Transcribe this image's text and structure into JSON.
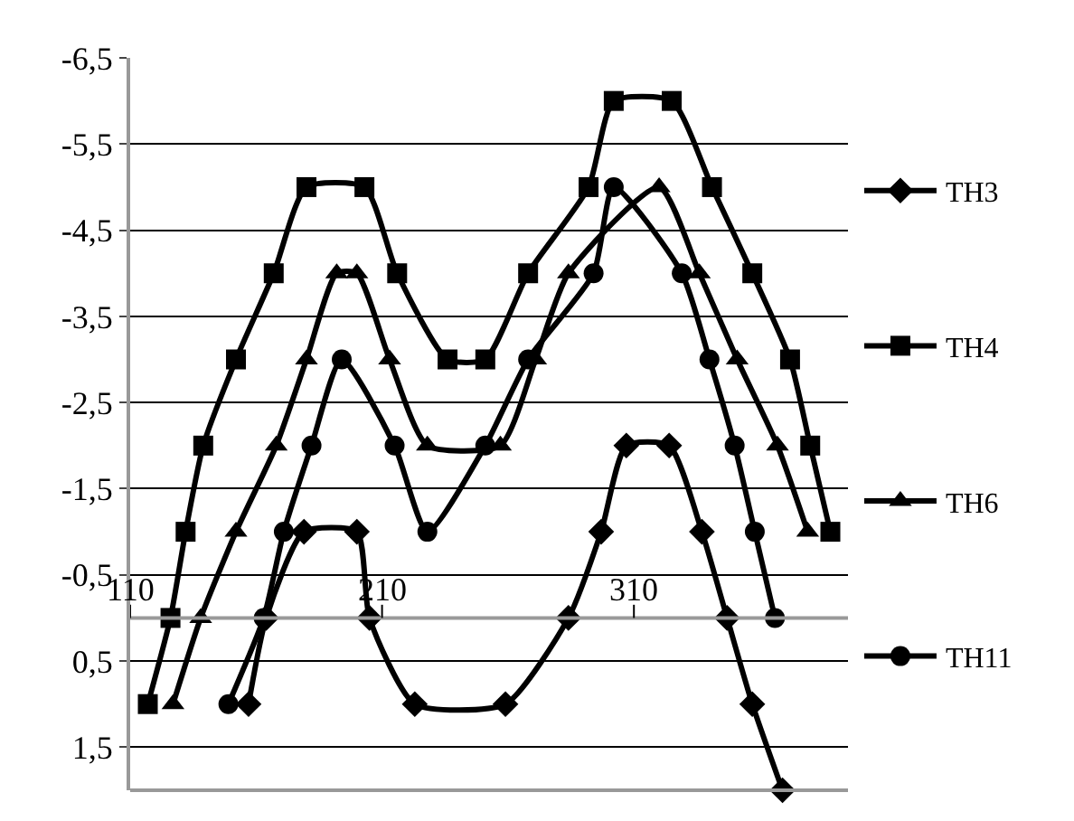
{
  "chart_data": {
    "type": "line",
    "ylim": [
      2,
      -6.5
    ],
    "yticks": [
      {
        "value": -6.5,
        "label": "-6,5"
      },
      {
        "value": -5.5,
        "label": "-5,5"
      },
      {
        "value": -4.5,
        "label": "-4,5"
      },
      {
        "value": -3.5,
        "label": "-3,5"
      },
      {
        "value": -2.5,
        "label": "-2,5"
      },
      {
        "value": -1.5,
        "label": "-1,5"
      },
      {
        "value": -0.5,
        "label": "-0,5"
      },
      {
        "value": 0.5,
        "label": "0,5"
      },
      {
        "value": 1.5,
        "label": "1,5"
      }
    ],
    "xlim": [
      110,
      395
    ],
    "xticks": [
      110,
      210,
      310
    ],
    "grid": "y",
    "legend": "right",
    "series": [
      {
        "name": "TH3",
        "color": "#000000",
        "marker": "diamond",
        "x": [
          157,
          164,
          179,
          200,
          205,
          223,
          259,
          284,
          297,
          307,
          324,
          337,
          347,
          357,
          369
        ],
        "values": [
          1,
          0,
          -1,
          -1,
          0,
          1,
          1,
          0,
          -1,
          -2,
          -2,
          -1,
          0,
          1,
          2
        ]
      },
      {
        "name": "TH4",
        "color": "#000000",
        "marker": "square",
        "x": [
          117,
          126,
          132,
          139,
          152,
          167,
          180,
          203,
          216,
          236,
          251,
          268,
          292,
          302,
          325,
          341,
          357,
          372,
          380,
          388
        ],
        "values": [
          1,
          0,
          -1,
          -2,
          -3,
          -4,
          -5,
          -5,
          -4,
          -3,
          -3,
          -4,
          -5,
          -6,
          -6,
          -5,
          -4,
          -3,
          -2,
          -1
        ]
      },
      {
        "name": "TH6",
        "color": "#000000",
        "marker": "triangle",
        "x": [
          127,
          138,
          152,
          168,
          180,
          192,
          200,
          213,
          228,
          257,
          271,
          284,
          320,
          336,
          351,
          367,
          379
        ],
        "values": [
          1,
          0,
          -1,
          -2,
          -3,
          -4,
          -4,
          -3,
          -2,
          -2,
          -3,
          -4,
          -5,
          -4,
          -3,
          -2,
          -1
        ]
      },
      {
        "name": "TH11",
        "color": "#000000",
        "marker": "circle",
        "x": [
          149,
          163,
          171,
          182,
          194,
          215,
          228,
          251,
          268,
          294,
          302,
          329,
          340,
          350,
          358,
          366
        ],
        "values": [
          1,
          0,
          -1,
          -2,
          -3,
          -2,
          -1,
          -2,
          -3,
          -4,
          -5,
          -4,
          -3,
          -2,
          -1,
          0
        ]
      }
    ]
  }
}
